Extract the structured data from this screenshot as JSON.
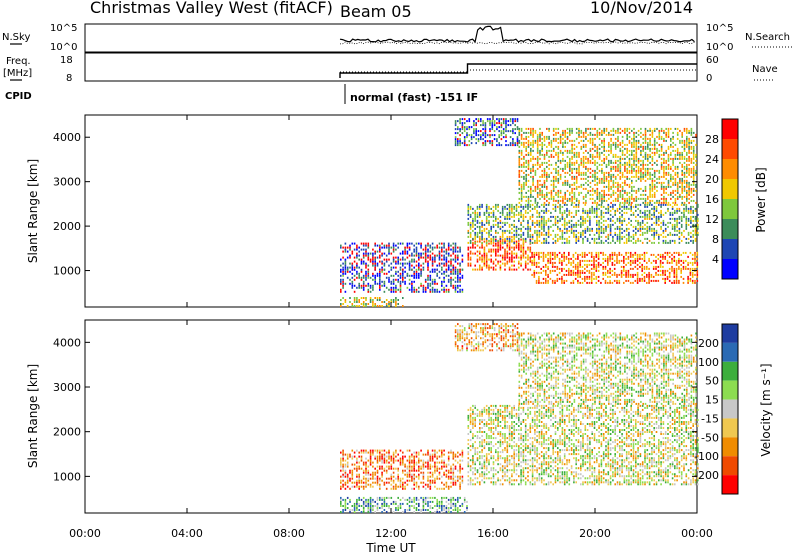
{
  "header": {
    "title": "Christmas Valley West (fitACF)",
    "beam": "Beam 05",
    "date": "10/Nov/2014"
  },
  "summary": {
    "nsky_label": "N.Sky",
    "nsky_ticks": [
      "10^5",
      "10^0"
    ],
    "nsearch_label": "N.Search",
    "nsearch_ticks": [
      "10^5",
      "10^0"
    ],
    "freq_label": "Freq.",
    "freq_unit": "[MHz]",
    "freq_ticks": [
      "18",
      "8"
    ],
    "nave_label": "Nave",
    "nave_ticks": [
      "60",
      "0"
    ],
    "cpid_label": "CPID",
    "cpid_text": "normal (fast) -151 IF"
  },
  "chart_data": [
    {
      "type": "heatmap",
      "name": "power-panel",
      "ylabel": "Slant Range [km]",
      "xlabel": "Time UT",
      "ylim": [
        180,
        4500
      ],
      "yticks": [
        "1000",
        "2000",
        "3000",
        "4000"
      ],
      "xticks": [
        "00:00",
        "04:00",
        "08:00",
        "12:00",
        "16:00",
        "20:00",
        "00:00"
      ],
      "colorbar": {
        "label": "Power [dB]",
        "ticks": [
          "28",
          "24",
          "20",
          "16",
          "12",
          "8",
          "4"
        ],
        "colors": [
          "#ff0000",
          "#ff4a00",
          "#ff8c00",
          "#f0c800",
          "#7ec83c",
          "#3c8c5a",
          "#1e46b4",
          "#0000ff"
        ]
      },
      "regions": [
        {
          "t0": 10.0,
          "t1": 12.5,
          "r0": 180,
          "r1": 400,
          "level": 0.5
        },
        {
          "t0": 10.0,
          "t1": 14.8,
          "r0": 500,
          "r1": 1000,
          "level": 0.15
        },
        {
          "t0": 10.0,
          "t1": 14.8,
          "r0": 1000,
          "r1": 1600,
          "level": 0.1
        },
        {
          "t0": 15.0,
          "t1": 17.5,
          "r0": 1000,
          "r1": 1700,
          "level": 0.8
        },
        {
          "t0": 15.0,
          "t1": 24.0,
          "r0": 1600,
          "r1": 2500,
          "level": 0.4
        },
        {
          "t0": 17.5,
          "t1": 24.0,
          "r0": 700,
          "r1": 1400,
          "level": 0.75
        },
        {
          "t0": 17.0,
          "t1": 24.0,
          "r0": 2500,
          "r1": 4200,
          "level": 0.55
        },
        {
          "t0": 14.5,
          "t1": 17.0,
          "r0": 3800,
          "r1": 4400,
          "level": 0.2
        }
      ]
    },
    {
      "type": "heatmap",
      "name": "velocity-panel",
      "ylabel": "Slant Range [km]",
      "xlabel": "Time UT",
      "ylim": [
        180,
        4500
      ],
      "yticks": [
        "1000",
        "2000",
        "3000",
        "4000"
      ],
      "xticks": [
        "00:00",
        "04:00",
        "08:00",
        "12:00",
        "16:00",
        "20:00",
        "00:00"
      ],
      "colorbar": {
        "label": "Velocity [m s⁻¹]",
        "ticks": [
          "200",
          "100",
          "50",
          "15",
          "-15",
          "-50",
          "-100",
          "-200"
        ],
        "colors": [
          "#1e3ca0",
          "#2a6ab4",
          "#3cae3c",
          "#8cdc50",
          "#c8c8c8",
          "#f0c850",
          "#f08c00",
          "#f04a00",
          "#ff0000"
        ]
      },
      "regions": [
        {
          "t0": 10.0,
          "t1": 15.0,
          "r0": 180,
          "r1": 500,
          "level": 0.7
        },
        {
          "t0": 10.0,
          "t1": 14.8,
          "r0": 700,
          "r1": 1600,
          "level": 0.25
        },
        {
          "t0": 15.0,
          "t1": 24.0,
          "r0": 800,
          "r1": 2600,
          "level": 0.5
        },
        {
          "t0": 17.0,
          "t1": 24.0,
          "r0": 2600,
          "r1": 4200,
          "level": 0.5
        },
        {
          "t0": 14.5,
          "t1": 17.0,
          "r0": 3800,
          "r1": 4400,
          "level": 0.35
        }
      ]
    }
  ],
  "colors": {
    "axis": "#000000",
    "background": "#ffffff"
  }
}
